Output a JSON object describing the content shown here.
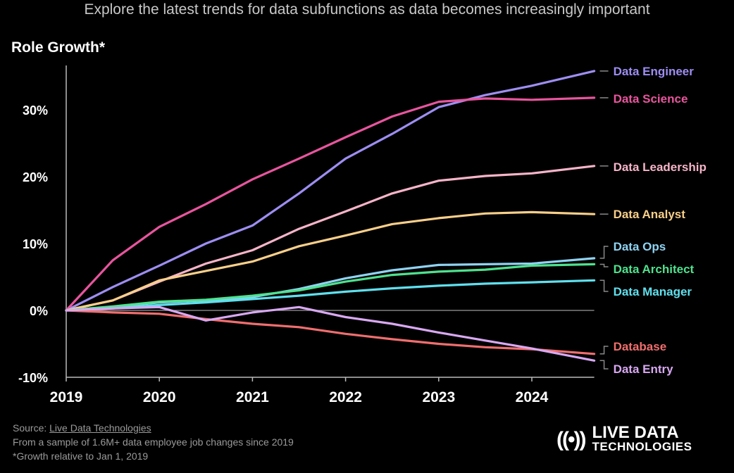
{
  "subtitle": "Explore the latest trends for data subfunctions as data becomes increasingly important",
  "footer": {
    "source_prefix": "Source: ",
    "source_link": "Live Data Technologies",
    "note1": "From a sample of 1.6M+ data employee job changes since 2019",
    "note2": "*Growth relative to Jan 1, 2019"
  },
  "logo": {
    "line1": "LIVE DATA",
    "line2": "TECHNOLOGIES",
    "icon": "broadcast-icon"
  },
  "chart_data": {
    "type": "line",
    "title": "Role Growth*",
    "xlabel": "",
    "ylabel": "Role Growth*",
    "x": [
      2019,
      2019.5,
      2020,
      2020.5,
      2021,
      2021.5,
      2022,
      2022.5,
      2023,
      2023.5,
      2024,
      2024.67
    ],
    "xticks": [
      "2019",
      "2020",
      "2021",
      "2022",
      "2023",
      "2024"
    ],
    "yticks": [
      "-10%",
      "0%",
      "10%",
      "20%",
      "30%"
    ],
    "ylim": [
      -10,
      36
    ],
    "xlim": [
      2019,
      2024.67
    ],
    "grid": false,
    "legend": "right, direct labels",
    "series": [
      {
        "name": "Data Engineer",
        "color": "#9d8ef2",
        "values": [
          0,
          3.5,
          6.7,
          10,
          12.7,
          17.5,
          22.7,
          26.4,
          30.4,
          32.2,
          33.6,
          35.8
        ]
      },
      {
        "name": "Data Science",
        "color": "#e8559e",
        "values": [
          0,
          7.5,
          12.5,
          15.9,
          19.6,
          22.7,
          25.9,
          29,
          31.2,
          31.7,
          31.5,
          31.8
        ]
      },
      {
        "name": "Data Leadership",
        "color": "#f6b4c8",
        "values": [
          0,
          1.5,
          4.3,
          7,
          9,
          12.2,
          14.8,
          17.5,
          19.4,
          20.1,
          20.5,
          21.6
        ]
      },
      {
        "name": "Data Analyst",
        "color": "#f8cf8a",
        "values": [
          0,
          1.5,
          4.5,
          5.9,
          7.3,
          9.6,
          11.2,
          12.9,
          13.8,
          14.5,
          14.7,
          14.4
        ]
      },
      {
        "name": "Data Ops",
        "color": "#8fd3f2",
        "values": [
          0,
          0.5,
          1.2,
          1.5,
          2,
          3.2,
          4.8,
          6,
          6.8,
          6.9,
          7,
          7.8
        ]
      },
      {
        "name": "Data Architect",
        "color": "#4ee28e",
        "values": [
          0,
          0.6,
          1.3,
          1.6,
          2.2,
          3,
          4.3,
          5.3,
          5.8,
          6.1,
          6.7,
          6.9
        ]
      },
      {
        "name": "Data Manager",
        "color": "#5fe0ee",
        "values": [
          0,
          0.3,
          0.8,
          1.2,
          1.7,
          2.2,
          2.8,
          3.3,
          3.7,
          4,
          4.2,
          4.5
        ]
      },
      {
        "name": "Database",
        "color": "#f06e6e",
        "values": [
          0,
          -0.3,
          -0.5,
          -1.3,
          -2,
          -2.5,
          -3.5,
          -4.3,
          -5,
          -5.5,
          -5.8,
          -6.5
        ]
      },
      {
        "name": "Data Entry",
        "color": "#d8a8f2",
        "values": [
          0,
          0.3,
          0.5,
          -1.5,
          -0.3,
          0.5,
          -1,
          -2,
          -3.3,
          -4.5,
          -5.7,
          -7.5
        ]
      }
    ]
  }
}
